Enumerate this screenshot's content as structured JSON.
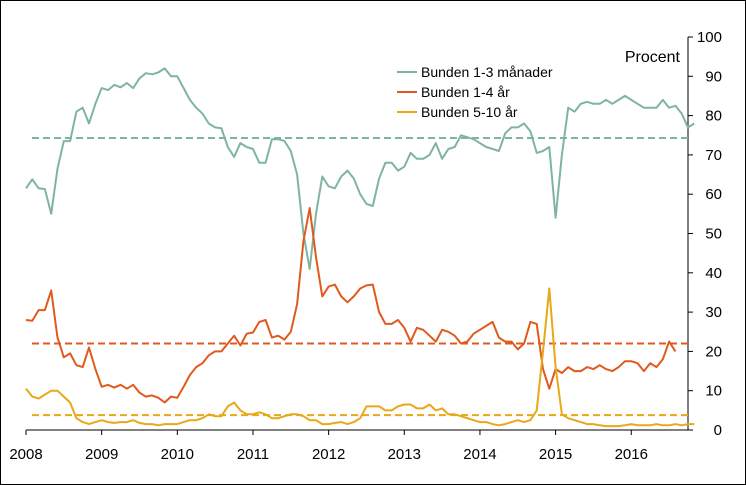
{
  "chart_data": {
    "type": "line",
    "ylabel": "Procent",
    "ylim": [
      0,
      100
    ],
    "yticks": [
      0,
      10,
      20,
      30,
      40,
      50,
      60,
      70,
      80,
      90,
      100
    ],
    "xlim": [
      2008.0,
      2016.75
    ],
    "xticks": [
      "2008",
      "2009",
      "2010",
      "2011",
      "2012",
      "2013",
      "2014",
      "2015",
      "2016"
    ],
    "legend_position": "top-center",
    "grid": false,
    "series": [
      {
        "name": "Bunden 1-3 månader",
        "color": "#7fb5a0",
        "x_start": 2008.0,
        "step_months": 1,
        "values": [
          61.5,
          63.8,
          61.5,
          61.3,
          55.0,
          66.5,
          73.5,
          73.5,
          81.0,
          82.0,
          78.0,
          83.0,
          87.0,
          86.5,
          87.8,
          87.2,
          88.3,
          87.0,
          89.5,
          90.8,
          90.5,
          91.0,
          92.0,
          90.0,
          90.0,
          87.0,
          84.0,
          82.0,
          80.5,
          78.0,
          77.0,
          76.8,
          72.0,
          69.5,
          73.0,
          72.0,
          71.5,
          68.0,
          68.0,
          74.0,
          74.0,
          73.5,
          71.0,
          65.0,
          50.0,
          41.0,
          55.0,
          64.5,
          62.0,
          61.5,
          64.5,
          66.0,
          64.0,
          60.0,
          57.5,
          57.0,
          64.0,
          68.0,
          68.0,
          66.0,
          67.0,
          70.5,
          69.0,
          69.0,
          70.0,
          73.0,
          69.0,
          71.5,
          72.0,
          75.0,
          74.5,
          74.0,
          73.0,
          72.0,
          71.5,
          71.0,
          75.5,
          77.0,
          77.0,
          78.0,
          76.0,
          70.5,
          71.0,
          72.0,
          54.0,
          70.0,
          82.0,
          81.0,
          83.0,
          83.5,
          83.0,
          83.0,
          84.0,
          83.0,
          84.0,
          85.0,
          84.0,
          83.0,
          82.0,
          82.0,
          82.0,
          84.0,
          82.0,
          82.5,
          80.5,
          77.0,
          78.0
        ],
        "mean": 74.3
      },
      {
        "name": "Bunden 1-4 år",
        "color": "#e05a1e",
        "x_start": 2008.0,
        "step_months": 1,
        "values": [
          28.0,
          27.8,
          30.5,
          30.5,
          35.5,
          23.5,
          18.5,
          19.5,
          16.5,
          16.0,
          21.0,
          15.5,
          11.0,
          11.5,
          10.8,
          11.5,
          10.5,
          11.5,
          9.5,
          8.5,
          8.8,
          8.2,
          7.0,
          8.5,
          8.2,
          11.0,
          14.0,
          16.0,
          17.0,
          19.0,
          20.0,
          20.0,
          22.0,
          24.0,
          21.5,
          24.5,
          24.8,
          27.5,
          28.0,
          23.5,
          24.0,
          23.0,
          25.0,
          32.0,
          48.0,
          56.5,
          44.0,
          34.0,
          36.5,
          37.0,
          34.0,
          32.5,
          34.0,
          36.0,
          36.8,
          37.0,
          30.0,
          27.0,
          27.0,
          28.0,
          26.0,
          22.5,
          26.0,
          25.5,
          24.0,
          22.5,
          25.5,
          25.0,
          24.0,
          22.0,
          22.5,
          24.5,
          25.5,
          26.5,
          27.5,
          23.5,
          22.5,
          22.5,
          20.5,
          22.0,
          27.5,
          27.0,
          15.5,
          10.5,
          15.5,
          14.5,
          16.0,
          15.0,
          15.0,
          16.0,
          15.5,
          16.5,
          15.5,
          15.0,
          16.0,
          17.5,
          17.5,
          17.0,
          15.0,
          17.0,
          16.0,
          18.0,
          22.5,
          20.0
        ],
        "mean": 22.0
      },
      {
        "name": "Bunden 5-10 år",
        "color": "#e8a818",
        "x_start": 2008.0,
        "step_months": 1,
        "values": [
          10.5,
          8.5,
          8.0,
          9.0,
          10.0,
          10.0,
          8.5,
          7.0,
          3.0,
          2.0,
          1.5,
          2.0,
          2.5,
          2.0,
          1.8,
          2.0,
          2.0,
          2.5,
          1.8,
          1.5,
          1.5,
          1.2,
          1.5,
          1.5,
          1.5,
          2.0,
          2.5,
          2.5,
          3.0,
          4.0,
          3.5,
          3.5,
          6.0,
          7.0,
          5.0,
          4.0,
          4.0,
          4.5,
          4.0,
          3.0,
          3.0,
          3.5,
          4.0,
          4.0,
          3.5,
          2.5,
          2.5,
          1.5,
          1.5,
          1.8,
          2.0,
          1.5,
          2.0,
          3.0,
          6.0,
          6.0,
          6.0,
          5.0,
          5.0,
          6.0,
          6.5,
          6.5,
          5.5,
          5.5,
          6.5,
          5.0,
          5.5,
          4.0,
          4.0,
          3.5,
          3.0,
          2.5,
          2.0,
          2.0,
          1.5,
          1.2,
          1.5,
          2.0,
          2.5,
          2.0,
          2.5,
          5.0,
          20.0,
          36.0,
          16.0,
          4.0,
          3.0,
          2.5,
          2.0,
          1.5,
          1.5,
          1.2,
          1.0,
          1.0,
          1.0,
          1.2,
          1.5,
          1.2,
          1.2,
          1.2,
          1.5,
          1.2,
          1.2,
          1.5,
          1.2,
          1.5,
          1.5
        ],
        "mean": 3.8
      }
    ]
  }
}
